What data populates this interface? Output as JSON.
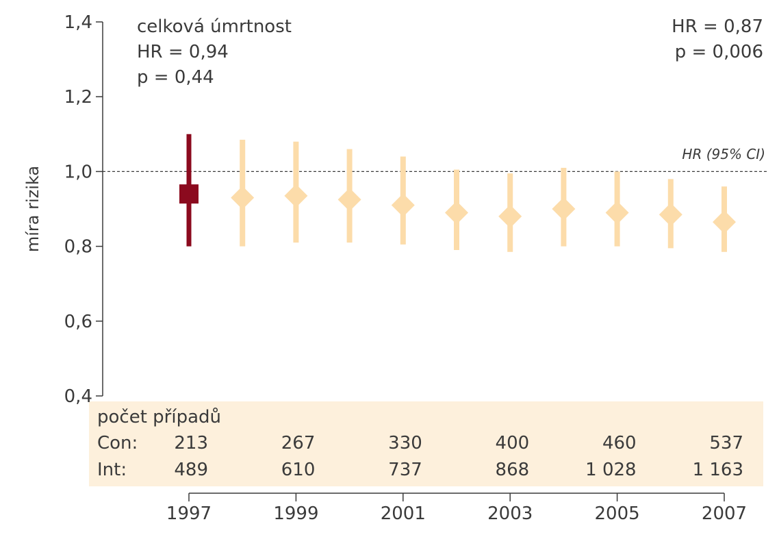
{
  "chart_data": {
    "type": "scatter",
    "ylabel": "míra rizika",
    "ylim": [
      0.4,
      1.4
    ],
    "y_ticks": [
      "0,4",
      "0,6",
      "0,8",
      "1,0",
      "1,2",
      "1,4"
    ],
    "y_tick_values": [
      0.4,
      0.6,
      0.8,
      1.0,
      1.2,
      1.4
    ],
    "x_ticks": [
      "1997",
      "1999",
      "2001",
      "2003",
      "2005",
      "2007"
    ],
    "x_tick_values": [
      1997,
      1999,
      2001,
      2003,
      2005,
      2007
    ],
    "xlim": [
      1997,
      2007
    ],
    "reference_line": {
      "y": 1.0,
      "label": "HR (95% CI)"
    },
    "points": [
      {
        "x": 1997,
        "y": 0.94,
        "lower": 0.8,
        "upper": 1.1,
        "marker": "square",
        "color": "#8b0a1e"
      },
      {
        "x": 1998,
        "y": 0.93,
        "lower": 0.8,
        "upper": 1.085,
        "marker": "diamond",
        "color": "#fcdcaa"
      },
      {
        "x": 1999,
        "y": 0.935,
        "lower": 0.81,
        "upper": 1.08,
        "marker": "diamond",
        "color": "#fcdcaa"
      },
      {
        "x": 2000,
        "y": 0.925,
        "lower": 0.81,
        "upper": 1.06,
        "marker": "diamond",
        "color": "#fcdcaa"
      },
      {
        "x": 2001,
        "y": 0.91,
        "lower": 0.805,
        "upper": 1.04,
        "marker": "diamond",
        "color": "#fcdcaa"
      },
      {
        "x": 2002,
        "y": 0.89,
        "lower": 0.79,
        "upper": 1.005,
        "marker": "diamond",
        "color": "#fcdcaa"
      },
      {
        "x": 2003,
        "y": 0.88,
        "lower": 0.785,
        "upper": 0.995,
        "marker": "diamond",
        "color": "#fcdcaa"
      },
      {
        "x": 2004,
        "y": 0.9,
        "lower": 0.8,
        "upper": 1.01,
        "marker": "diamond",
        "color": "#fcdcaa"
      },
      {
        "x": 2005,
        "y": 0.89,
        "lower": 0.8,
        "upper": 1.0,
        "marker": "diamond",
        "color": "#fcdcaa"
      },
      {
        "x": 2006,
        "y": 0.885,
        "lower": 0.795,
        "upper": 0.98,
        "marker": "diamond",
        "color": "#fcdcaa"
      },
      {
        "x": 2007,
        "y": 0.865,
        "lower": 0.785,
        "upper": 0.96,
        "marker": "diamond",
        "color": "#fcdcaa"
      }
    ],
    "annotations": {
      "left": [
        "celková úmrtnost",
        "HR = 0,94",
        "p = 0,44"
      ],
      "right": [
        "HR = 0,87",
        "p = 0,006"
      ]
    },
    "table": {
      "title": "počet případů",
      "rows": [
        {
          "label": "Con:",
          "values": [
            "213",
            "267",
            "330",
            "400",
            "460",
            "537"
          ]
        },
        {
          "label": "Int:",
          "values": [
            "489",
            "610",
            "737",
            "868",
            "1 028",
            "1 163"
          ]
        }
      ],
      "background": "#fdf0dc"
    }
  }
}
